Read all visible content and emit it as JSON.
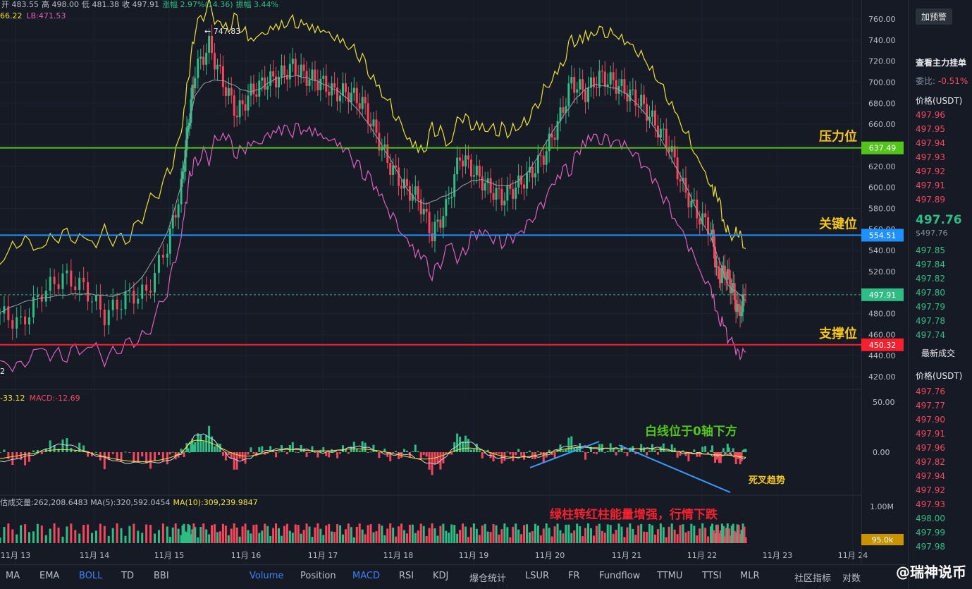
{
  "header": {
    "ohlc": [
      {
        "label": "开",
        "value": "483.55"
      },
      {
        "label": "高",
        "value": "498.00"
      },
      {
        "label": "低",
        "value": "481.38"
      },
      {
        "label": "收",
        "value": "497.91"
      },
      {
        "label": "涨幅",
        "value": "2.97%(14.36)"
      },
      {
        "label": "振幅",
        "value": "3.44%"
      }
    ],
    "boll_ub_fragment": "66.22",
    "boll_lb": "LB:471.53",
    "macd_fragment": "-33.12",
    "macd": "MACD:-12.69",
    "vol_fragment": "估成交量:262,208.6483",
    "vol_ma5": "MA(5):320,592.0454",
    "vol_ma10": "MA(10):309,239.9847",
    "high_marker": "← 747.83",
    "low_marker": "2"
  },
  "chart_data": {
    "type": "candlestick",
    "price_axis": {
      "ticks": [
        "760.00",
        "740.00",
        "720.00",
        "700.00",
        "680.00",
        "660.00",
        "640.00",
        "620.00",
        "600.00",
        "580.00",
        "560.00",
        "540.00",
        "520.00",
        "500.00",
        "480.00",
        "460.00",
        "440.00",
        "420.00"
      ],
      "ylim": [
        420,
        770
      ]
    },
    "x_axis": {
      "ticks": [
        "11月 13",
        "11月 14",
        "11月 15",
        "11月 16",
        "11月 17",
        "11月 18",
        "11月 19",
        "11月 20",
        "11月 21",
        "11月 22",
        "11月 23",
        "11月 24"
      ]
    },
    "levels": [
      {
        "name": "压力位",
        "price": 637.49,
        "label": "637.49",
        "color": "#52c41a"
      },
      {
        "name": "关键位",
        "price": 554.51,
        "label": "554.51",
        "color": "#1e90ff"
      },
      {
        "name": "支撑位",
        "price": 450.32,
        "label": "450.32",
        "color": "#f6202e"
      }
    ],
    "current_price": {
      "price": 497.91,
      "label": "497.91"
    },
    "close_path": [
      [
        0,
        480
      ],
      [
        6,
        470
      ],
      [
        12,
        500
      ],
      [
        18,
        515
      ],
      [
        24,
        505
      ],
      [
        30,
        478
      ],
      [
        36,
        495
      ],
      [
        42,
        500
      ],
      [
        48,
        545
      ],
      [
        52,
        600
      ],
      [
        54,
        660
      ],
      [
        56,
        710
      ],
      [
        60,
        735
      ],
      [
        64,
        700
      ],
      [
        68,
        670
      ],
      [
        72,
        690
      ],
      [
        76,
        700
      ],
      [
        80,
        705
      ],
      [
        84,
        715
      ],
      [
        88,
        705
      ],
      [
        92,
        700
      ],
      [
        96,
        690
      ],
      [
        100,
        690
      ],
      [
        104,
        680
      ],
      [
        108,
        650
      ],
      [
        112,
        620
      ],
      [
        116,
        600
      ],
      [
        120,
        590
      ],
      [
        124,
        555
      ],
      [
        128,
        580
      ],
      [
        132,
        630
      ],
      [
        136,
        615
      ],
      [
        140,
        600
      ],
      [
        144,
        590
      ],
      [
        148,
        600
      ],
      [
        152,
        612
      ],
      [
        156,
        630
      ],
      [
        160,
        660
      ],
      [
        164,
        700
      ],
      [
        168,
        690
      ],
      [
        172,
        705
      ],
      [
        176,
        700
      ],
      [
        180,
        690
      ],
      [
        184,
        680
      ],
      [
        188,
        660
      ],
      [
        192,
        640
      ],
      [
        196,
        600
      ],
      [
        200,
        575
      ],
      [
        204,
        560
      ],
      [
        206,
        515
      ],
      [
        208,
        520
      ],
      [
        210,
        505
      ],
      [
        212,
        480
      ],
      [
        214,
        497.91
      ]
    ],
    "macd_axis": {
      "ticks": [
        "50.00",
        "0.00"
      ]
    },
    "volume_axis": {
      "ticks": [
        "1.00M"
      ],
      "current": "95.0k"
    },
    "annotations": [
      {
        "text": "压力位",
        "color": "#f5c518"
      },
      {
        "text": "关键位",
        "color": "#f5c518"
      },
      {
        "text": "支撑位",
        "color": "#f5c518"
      },
      {
        "text": "白线位于0轴下方",
        "color": "#52c41a"
      },
      {
        "text": "死叉趋势",
        "color": "#f5c518"
      },
      {
        "text": "绿柱转红柱能量增强，行情下跌",
        "color": "#f6202e"
      }
    ]
  },
  "toolbar": {
    "items": [
      {
        "label": "MA",
        "active": false
      },
      {
        "label": "EMA",
        "active": false
      },
      {
        "label": "BOLL",
        "active": true
      },
      {
        "label": "TD",
        "active": false
      },
      {
        "label": "BBI",
        "active": false
      },
      {
        "label": "Volume",
        "active": true
      },
      {
        "label": "Position",
        "active": false
      },
      {
        "label": "MACD",
        "active": true
      },
      {
        "label": "RSI",
        "active": false
      },
      {
        "label": "KDJ",
        "active": false
      },
      {
        "label": "爆仓统计",
        "active": false
      },
      {
        "label": "LSUR",
        "active": false
      },
      {
        "label": "FR",
        "active": false
      },
      {
        "label": "Fundflow",
        "active": false
      },
      {
        "label": "TTMU",
        "active": false
      },
      {
        "label": "TTSI",
        "active": false
      },
      {
        "label": "MLR",
        "active": false
      },
      {
        "label": "社区指标",
        "active": false
      },
      {
        "label": "对数",
        "active": false
      }
    ]
  },
  "sidebar": {
    "add_alert": "加预警",
    "view_orders": "查看主力挂单",
    "commission_label": "委比:",
    "commission_value": "-0.51%",
    "price_header": "价格(USDT)",
    "asks": [
      "497.96",
      "497.95",
      "497.94",
      "497.93",
      "497.92",
      "497.91",
      "497.89"
    ],
    "last_price": "497.76",
    "last_price_usd": "$497.76",
    "bids": [
      "497.85",
      "497.84",
      "497.82",
      "497.80",
      "497.79",
      "497.78",
      "497.74"
    ],
    "trades_title": "最新成交",
    "trades_header": "价格(USDT)",
    "trades": [
      {
        "p": "497.76",
        "c": "red"
      },
      {
        "p": "497.77",
        "c": "red"
      },
      {
        "p": "497.90",
        "c": "red"
      },
      {
        "p": "497.91",
        "c": "red"
      },
      {
        "p": "497.96",
        "c": "red"
      },
      {
        "p": "497.82",
        "c": "red"
      },
      {
        "p": "497.94",
        "c": "red"
      },
      {
        "p": "497.92",
        "c": "red"
      },
      {
        "p": "497.93",
        "c": "red"
      },
      {
        "p": "498.00",
        "c": "green"
      },
      {
        "p": "497.99",
        "c": "green"
      },
      {
        "p": "497.98",
        "c": "green"
      }
    ]
  },
  "watermark": "@瑞神说币"
}
